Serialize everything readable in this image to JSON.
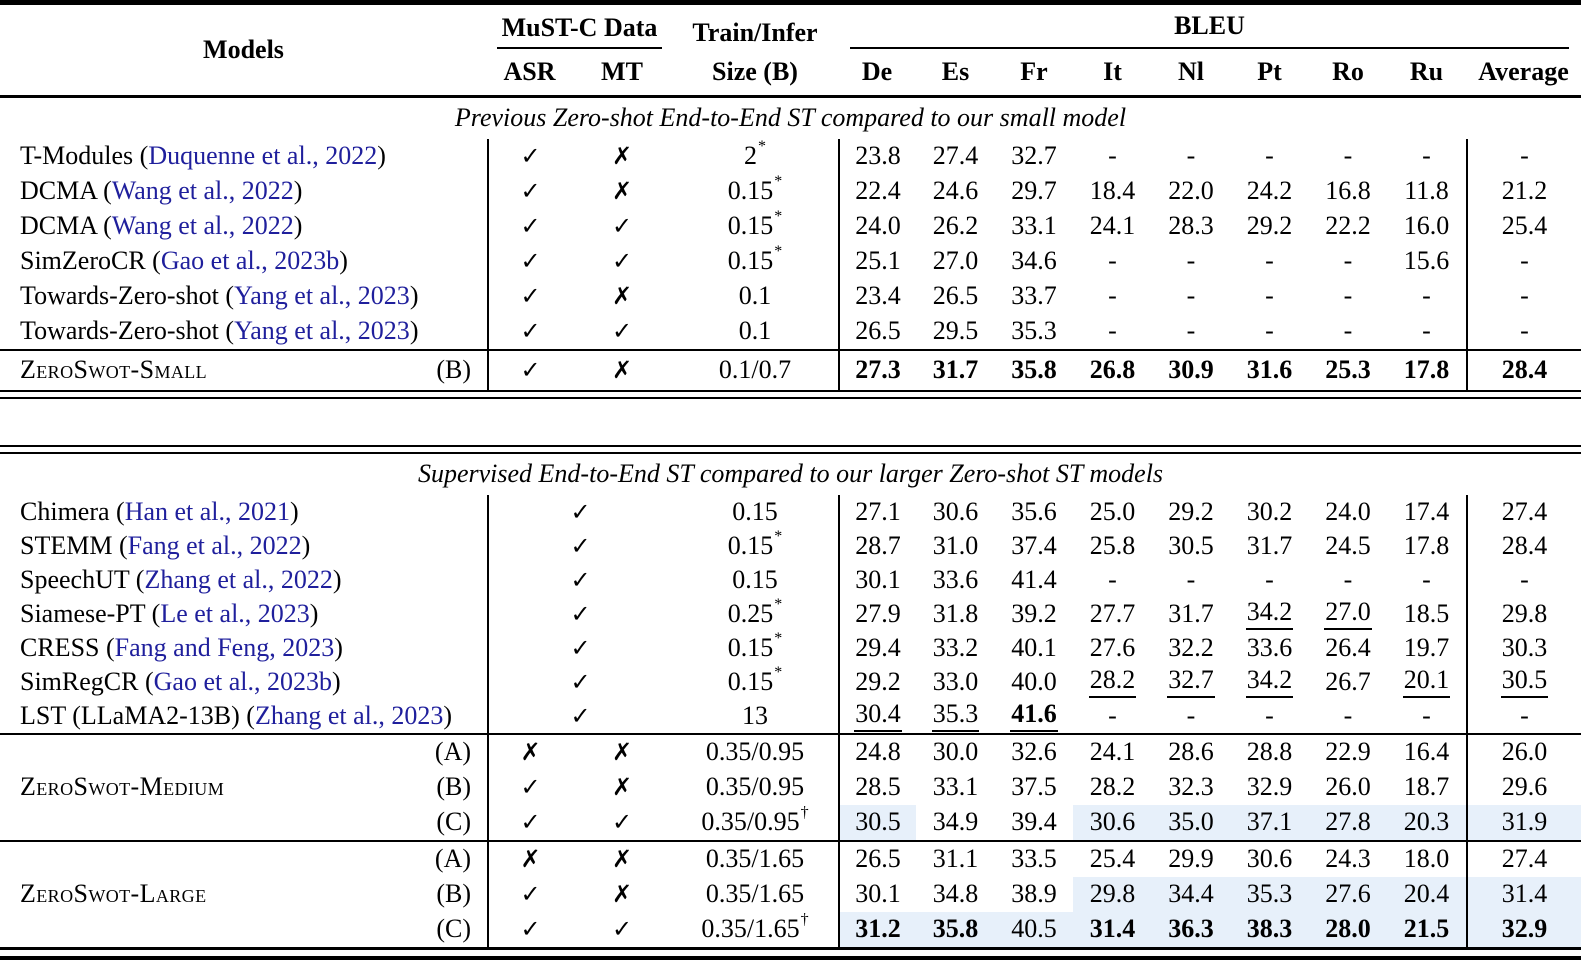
{
  "colors": {
    "citation_link": "#1f1f9c",
    "row_highlight": "#e7f0fa",
    "text": "#000000",
    "rules": "#000000",
    "background": "#ffffff"
  },
  "icons": {
    "check": "✓",
    "cross": "✗"
  },
  "header": {
    "models": "Models",
    "mustc_data": "MuST-C Data",
    "asr": "ASR",
    "mt": "MT",
    "train_infer_line1": "Train/Infer",
    "train_infer_line2": "Size (B)",
    "bleu": "BLEU",
    "langs": [
      "De",
      "Es",
      "Fr",
      "It",
      "Nl",
      "Pt",
      "Ro",
      "Ru"
    ],
    "average": "Average"
  },
  "table1": {
    "section_title": "Previous Zero-shot End-to-End ST compared to our small model",
    "rows": [
      {
        "model": {
          "pre": "T-Modules (",
          "cite": "Duquenne et al., 2022",
          "post": ")"
        },
        "asr": "check",
        "mt": "cross",
        "size": {
          "v": "2",
          "sup": "*"
        },
        "bleu": [
          "23.8",
          "27.4",
          "32.7",
          "-",
          "-",
          "-",
          "-",
          "-"
        ],
        "avg": "-"
      },
      {
        "model": {
          "pre": "DCMA (",
          "cite": "Wang et al., 2022",
          "post": ")"
        },
        "asr": "check",
        "mt": "cross",
        "size": {
          "v": "0.15",
          "sup": "*"
        },
        "bleu": [
          "22.4",
          "24.6",
          "29.7",
          "18.4",
          "22.0",
          "24.2",
          "16.8",
          "11.8"
        ],
        "avg": "21.2"
      },
      {
        "model": {
          "pre": "DCMA (",
          "cite": "Wang et al., 2022",
          "post": ")"
        },
        "asr": "check",
        "mt": "check",
        "size": {
          "v": "0.15",
          "sup": "*"
        },
        "bleu": [
          "24.0",
          "26.2",
          "33.1",
          "24.1",
          "28.3",
          "29.2",
          "22.2",
          "16.0"
        ],
        "avg": "25.4"
      },
      {
        "model": {
          "pre": "SimZeroCR (",
          "cite": "Gao et al., 2023b",
          "post": ")"
        },
        "asr": "check",
        "mt": "check",
        "size": {
          "v": "0.15",
          "sup": "*"
        },
        "bleu": [
          "25.1",
          "27.0",
          "34.6",
          "-",
          "-",
          "-",
          "-",
          "15.6"
        ],
        "avg": "-"
      },
      {
        "model": {
          "pre": "Towards-Zero-shot (",
          "cite": "Yang et al., 2023",
          "post": ")"
        },
        "asr": "check",
        "mt": "cross",
        "size": {
          "v": "0.1",
          "sup": ""
        },
        "bleu": [
          "23.4",
          "26.5",
          "33.7",
          "-",
          "-",
          "-",
          "-",
          "-"
        ],
        "avg": "-"
      },
      {
        "model": {
          "pre": "Towards-Zero-shot (",
          "cite": "Yang et al., 2023",
          "post": ")"
        },
        "asr": "check",
        "mt": "check",
        "size": {
          "v": "0.1",
          "sup": ""
        },
        "bleu": [
          "26.5",
          "29.5",
          "35.3",
          "-",
          "-",
          "-",
          "-",
          "-"
        ],
        "avg": "-"
      }
    ],
    "zeroswot_row": {
      "label": "ZeroSwot-Small",
      "variant": "(B)",
      "asr": "check",
      "mt": "cross",
      "size": {
        "v": "0.1/0.7",
        "sup": ""
      },
      "bleu": [
        "27.3|b",
        "31.7|b",
        "35.8|b",
        "26.8|b",
        "30.9|b",
        "31.6|b",
        "25.3|b",
        "17.8|b"
      ],
      "avg": "28.4|b"
    }
  },
  "table2": {
    "section_title": "Supervised End-to-End ST compared to our larger Zero-shot ST models",
    "rows": [
      {
        "model": {
          "pre": "Chimera (",
          "cite": "Han et al., 2021",
          "post": ")"
        },
        "mustc": "check",
        "size": {
          "v": "0.15",
          "sup": ""
        },
        "bleu": [
          "27.1",
          "30.6",
          "35.6",
          "25.0",
          "29.2",
          "30.2",
          "24.0",
          "17.4"
        ],
        "avg": "27.4"
      },
      {
        "model": {
          "pre": "STEMM (",
          "cite": "Fang et al., 2022",
          "post": ")"
        },
        "mustc": "check",
        "size": {
          "v": "0.15",
          "sup": "*"
        },
        "bleu": [
          "28.7",
          "31.0",
          "37.4",
          "25.8",
          "30.5",
          "31.7",
          "24.5",
          "17.8"
        ],
        "avg": "28.4"
      },
      {
        "model": {
          "pre": "SpeechUT (",
          "cite": "Zhang et al., 2022",
          "post": ")"
        },
        "mustc": "check",
        "size": {
          "v": "0.15",
          "sup": ""
        },
        "bleu": [
          "30.1",
          "33.6",
          "41.4",
          "-",
          "-",
          "-",
          "-",
          "-"
        ],
        "avg": "-"
      },
      {
        "model": {
          "pre": "Siamese-PT (",
          "cite": "Le et al., 2023",
          "post": ")"
        },
        "mustc": "check",
        "size": {
          "v": "0.25",
          "sup": "*"
        },
        "bleu": [
          "27.9",
          "31.8",
          "39.2",
          "27.7",
          "31.7",
          "34.2|u",
          "27.0|u",
          "18.5"
        ],
        "avg": "29.8"
      },
      {
        "model": {
          "pre": "CRESS (",
          "cite": "Fang and Feng, 2023",
          "post": ")"
        },
        "mustc": "check",
        "size": {
          "v": "0.15",
          "sup": "*"
        },
        "bleu": [
          "29.4",
          "33.2",
          "40.1",
          "27.6",
          "32.2",
          "33.6",
          "26.4",
          "19.7"
        ],
        "avg": "30.3"
      },
      {
        "model": {
          "pre": "SimRegCR (",
          "cite": "Gao et al., 2023b",
          "post": ")"
        },
        "mustc": "check",
        "size": {
          "v": "0.15",
          "sup": "*"
        },
        "bleu": [
          "29.2",
          "33.0",
          "40.0",
          "28.2|u",
          "32.7|u",
          "34.2|u",
          "26.7",
          "20.1|u"
        ],
        "avg": "30.5|u"
      },
      {
        "model": {
          "pre": "LST (LLaMA2-13B) (",
          "cite": "Zhang et al., 2023",
          "post": ")"
        },
        "mustc": "check",
        "size": {
          "v": "13",
          "sup": ""
        },
        "bleu": [
          "30.4|u",
          "35.3|u",
          "41.6|bu",
          "-",
          "-",
          "-",
          "-",
          "-"
        ],
        "avg": "-"
      }
    ],
    "groups": [
      {
        "label": "ZeroSwot-Medium",
        "rows": [
          {
            "variant": "(A)",
            "asr": "cross",
            "mt": "cross",
            "size": {
              "v": "0.35/0.95",
              "sup": ""
            },
            "bleu": [
              "24.8",
              "30.0",
              "32.6",
              "24.1",
              "28.6",
              "28.8",
              "22.9",
              "16.4"
            ],
            "avg": "26.0"
          },
          {
            "variant": "(B)",
            "asr": "check",
            "mt": "cross",
            "size": {
              "v": "0.35/0.95",
              "sup": ""
            },
            "bleu": [
              "28.5",
              "33.1",
              "37.5",
              "28.2",
              "32.3",
              "32.9",
              "26.0",
              "18.7"
            ],
            "avg": "29.6"
          },
          {
            "variant": "(C)",
            "asr": "check",
            "mt": "check",
            "size": {
              "v": "0.35/0.95",
              "sup": "†"
            },
            "bleu": [
              "30.5|h",
              "34.9",
              "39.4",
              "30.6|h",
              "35.0|h",
              "37.1|h",
              "27.8|h",
              "20.3|h"
            ],
            "avg": "31.9|h"
          }
        ]
      },
      {
        "label": "ZeroSwot-Large",
        "rows": [
          {
            "variant": "(A)",
            "asr": "cross",
            "mt": "cross",
            "size": {
              "v": "0.35/1.65",
              "sup": ""
            },
            "bleu": [
              "26.5",
              "31.1",
              "33.5",
              "25.4",
              "29.9",
              "30.6",
              "24.3",
              "18.0"
            ],
            "avg": "27.4"
          },
          {
            "variant": "(B)",
            "asr": "check",
            "mt": "cross",
            "size": {
              "v": "0.35/1.65",
              "sup": ""
            },
            "bleu": [
              "30.1",
              "34.8",
              "38.9",
              "29.8|h",
              "34.4|h",
              "35.3|h",
              "27.6|h",
              "20.4|h"
            ],
            "avg": "31.4|h"
          },
          {
            "variant": "(C)",
            "asr": "check",
            "mt": "check",
            "size": {
              "v": "0.35/1.65",
              "sup": "†"
            },
            "bleu": [
              "31.2|bh",
              "35.8|bh",
              "40.5|h",
              "31.4|bh",
              "36.3|bh",
              "38.3|bh",
              "28.0|bh",
              "21.5|bh"
            ],
            "avg": "32.9|bh"
          }
        ]
      }
    ]
  }
}
